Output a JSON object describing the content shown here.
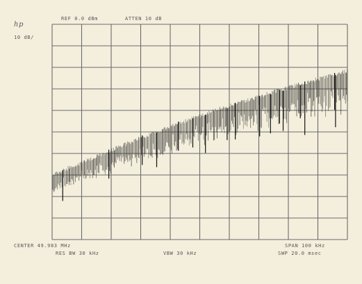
{
  "header": {
    "logo": "hp",
    "reference": "REF 0.0 dBm",
    "attenuation": "ATTEN 10 dB",
    "scale": "10 dB/"
  },
  "footer": {
    "center": "CENTER 49.983 MHz",
    "span": "SPAN 100 kHz",
    "resolution_bandwidth": "RES BW 30 kHz",
    "video_bandwidth": "VBW 30 kHz",
    "sweep": "SWP 20.0 msec"
  }
}
